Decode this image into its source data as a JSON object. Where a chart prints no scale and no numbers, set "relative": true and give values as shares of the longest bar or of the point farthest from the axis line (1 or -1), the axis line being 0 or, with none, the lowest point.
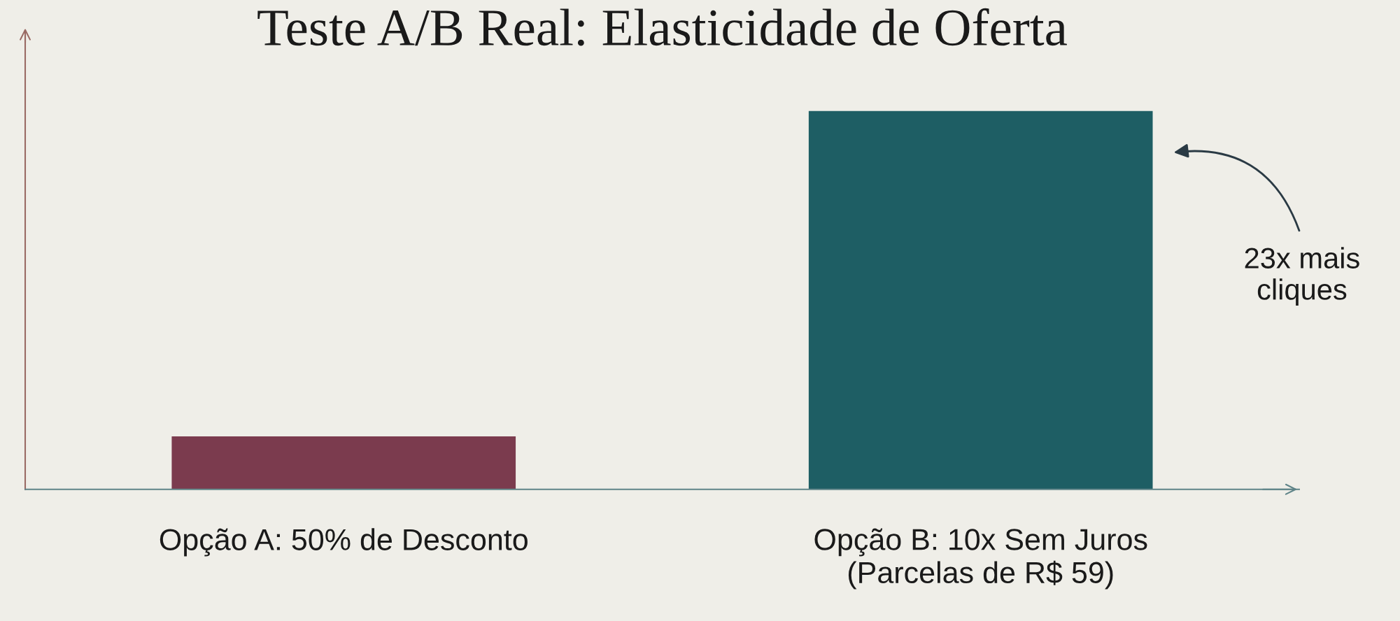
{
  "chart_data": {
    "type": "bar",
    "title": "Teste A/B Real: Elasticidade de Oferta",
    "categories": [
      "Opção A: 50% de Desconto",
      "Opção B: 10x Sem Juros\n(Parcelas de R$ 59)"
    ],
    "values": [
      0.14,
      1
    ],
    "colors": [
      "#7b3b4e",
      "#1e5e64"
    ],
    "relative": true,
    "grid": false,
    "annotations": [
      "23x mais\ncliques"
    ]
  }
}
